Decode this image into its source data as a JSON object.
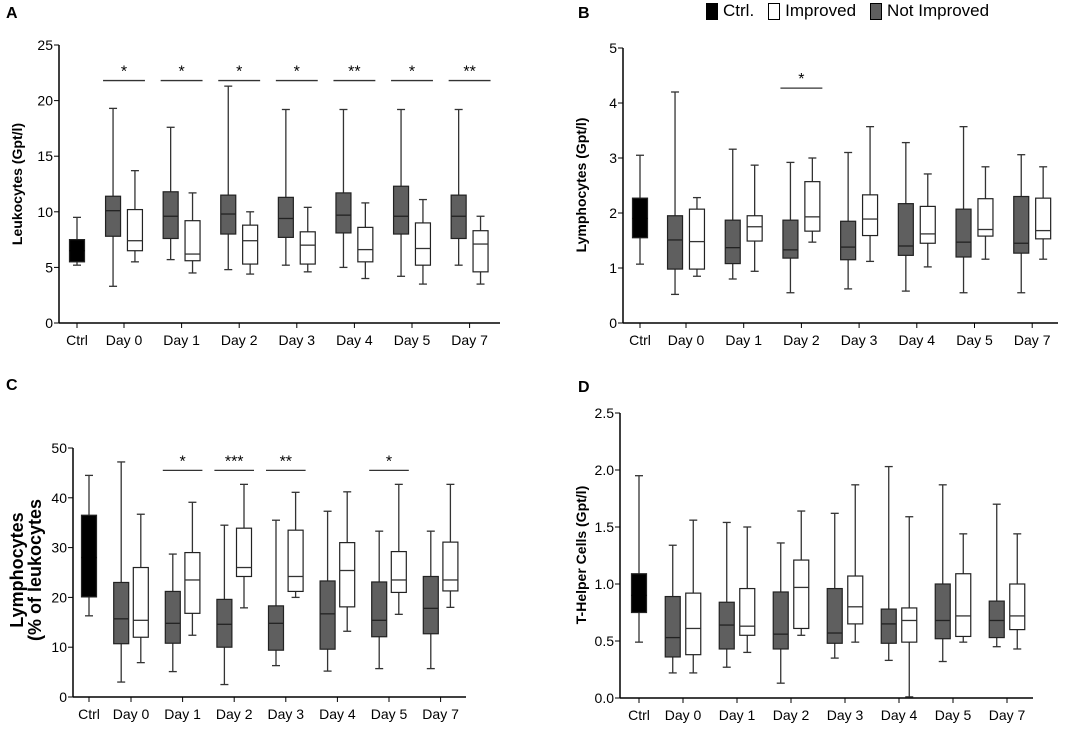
{
  "legend": [
    {
      "label": "Ctrl.",
      "color": "#000000"
    },
    {
      "label": "Improved",
      "color": "#ffffff"
    },
    {
      "label": "Not Improved",
      "color": "#5f5f5f"
    }
  ],
  "chart_data": [
    {
      "type": "box",
      "panel": "A",
      "ylabel": "Leukocytes (Gpt/l)",
      "ylim": [
        0,
        25
      ],
      "yticks": [
        "0",
        "5",
        "10",
        "15",
        "20",
        "25"
      ],
      "categories": [
        "Ctrl",
        "Day 0",
        "Day 1",
        "Day 2",
        "Day 3",
        "Day 4",
        "Day 5",
        "Day 7"
      ],
      "ctrl": [
        5.2,
        5.5,
        6.5,
        7.5,
        9.5
      ],
      "not_improved": [
        [
          3.3,
          7.8,
          10.1,
          11.4,
          19.3
        ],
        [
          5.7,
          7.6,
          9.6,
          11.8,
          17.6
        ],
        [
          4.8,
          8.0,
          9.8,
          11.5,
          21.3
        ],
        [
          5.2,
          7.7,
          9.4,
          11.3,
          19.2
        ],
        [
          5.0,
          8.1,
          9.7,
          11.7,
          19.2
        ],
        [
          4.2,
          8.0,
          9.6,
          12.3,
          19.2
        ],
        [
          5.2,
          7.6,
          9.6,
          11.5,
          19.2
        ]
      ],
      "improved": [
        [
          5.5,
          6.5,
          7.4,
          10.2,
          13.7
        ],
        [
          4.5,
          5.6,
          6.2,
          9.2,
          11.7
        ],
        [
          4.4,
          5.3,
          7.4,
          8.8,
          10.0
        ],
        [
          4.6,
          5.3,
          7.0,
          8.2,
          10.4
        ],
        [
          4.0,
          5.5,
          6.6,
          8.6,
          10.8
        ],
        [
          3.5,
          5.2,
          6.7,
          9.0,
          11.1
        ],
        [
          3.5,
          4.6,
          7.1,
          8.3,
          9.6
        ]
      ],
      "significance": [
        "*",
        "*",
        "*",
        "*",
        "**",
        "*",
        "**"
      ],
      "sig_level": 21.8
    },
    {
      "type": "box",
      "panel": "B",
      "ylabel": "Lymphocytes (Gpt/l)",
      "ylim": [
        0,
        5
      ],
      "yticks": [
        "0",
        "1",
        "2",
        "3",
        "4",
        "5"
      ],
      "categories": [
        "Ctrl",
        "Day 0",
        "Day 1",
        "Day 2",
        "Day 3",
        "Day 4",
        "Day 5",
        "Day 7"
      ],
      "ctrl": [
        1.07,
        1.55,
        1.9,
        2.27,
        3.05
      ],
      "not_improved": [
        [
          0.52,
          0.98,
          1.51,
          1.95,
          4.2
        ],
        [
          0.8,
          1.08,
          1.37,
          1.87,
          3.16
        ],
        [
          0.55,
          1.18,
          1.33,
          1.87,
          2.92
        ],
        [
          0.62,
          1.15,
          1.38,
          1.85,
          3.1
        ],
        [
          0.58,
          1.23,
          1.4,
          2.17,
          3.28
        ],
        [
          0.55,
          1.2,
          1.47,
          2.07,
          3.57
        ],
        [
          0.55,
          1.27,
          1.45,
          2.3,
          3.06
        ]
      ],
      "improved": [
        [
          0.85,
          0.98,
          1.48,
          2.07,
          2.28
        ],
        [
          0.94,
          1.49,
          1.75,
          1.95,
          2.87
        ],
        [
          1.47,
          1.67,
          1.93,
          2.57,
          3.0
        ],
        [
          1.12,
          1.59,
          1.89,
          2.33,
          3.57
        ],
        [
          1.02,
          1.45,
          1.62,
          2.12,
          2.71
        ],
        [
          1.16,
          1.58,
          1.7,
          2.26,
          2.84
        ],
        [
          1.16,
          1.53,
          1.68,
          2.27,
          2.84
        ]
      ],
      "significance": [
        "",
        "",
        "*",
        "",
        "",
        "",
        ""
      ],
      "sig_level": 4.27
    },
    {
      "type": "box",
      "panel": "C",
      "ylabel": "Lymphocytes",
      "ylabel2": "(% of leukocytes",
      "ylim": [
        0,
        50
      ],
      "yticks": [
        "0",
        "10",
        "20",
        "30",
        "40",
        "50"
      ],
      "categories": [
        "Ctrl",
        "Day 0",
        "Day 1",
        "Day 2",
        "Day 3",
        "Day 4",
        "Day 5",
        "Day 7"
      ],
      "ctrl": [
        16.3,
        20.1,
        28,
        36.5,
        44.5
      ],
      "not_improved": [
        [
          3,
          10.7,
          15.7,
          23,
          47.2
        ],
        [
          5.1,
          10.8,
          14.8,
          21.2,
          28.7
        ],
        [
          2.5,
          10,
          14.6,
          19.6,
          34.5
        ],
        [
          6.3,
          9.4,
          14.8,
          18.3,
          35.5
        ],
        [
          5.2,
          9.6,
          16.7,
          23.3,
          37.3
        ],
        [
          5.7,
          12.1,
          15.4,
          23.1,
          33.3
        ],
        [
          5.7,
          12.7,
          17.8,
          24.2,
          33.3
        ]
      ],
      "improved": [
        [
          6.9,
          12,
          15.4,
          26,
          36.7
        ],
        [
          12.4,
          16.8,
          23.5,
          29,
          39.1
        ],
        [
          17.9,
          24.2,
          26,
          33.9,
          42.7
        ],
        [
          20,
          21.2,
          24.2,
          33.5,
          41.1
        ],
        [
          13.2,
          18.1,
          25.4,
          31,
          41.2
        ],
        [
          16.6,
          21,
          23.5,
          29.2,
          42.7
        ],
        [
          18,
          21.3,
          23.5,
          31.1,
          42.7
        ]
      ],
      "significance": [
        "",
        "*",
        "***",
        "**",
        "",
        "*",
        ""
      ],
      "sig_level": 45.5
    },
    {
      "type": "box",
      "panel": "D",
      "ylabel": "T-Helper Cells (Gpt/l)",
      "ylim": [
        0,
        2.5
      ],
      "yticks": [
        "0.0",
        "0.5",
        "1.0",
        "1.5",
        "2.0",
        "2.5"
      ],
      "categories": [
        "Ctrl",
        "Day 0",
        "Day 1",
        "Day 2",
        "Day 3",
        "Day 4",
        "Day 5",
        "Day 7"
      ],
      "ctrl": [
        0.49,
        0.75,
        0.9,
        1.09,
        1.95
      ],
      "not_improved": [
        [
          0.22,
          0.36,
          0.53,
          0.89,
          1.34
        ],
        [
          0.27,
          0.43,
          0.64,
          0.84,
          1.54
        ],
        [
          0.13,
          0.43,
          0.56,
          0.93,
          1.36
        ],
        [
          0.35,
          0.48,
          0.57,
          0.96,
          1.62
        ],
        [
          0.33,
          0.48,
          0.65,
          0.78,
          2.03
        ],
        [
          0.32,
          0.52,
          0.68,
          1.0,
          1.87
        ],
        [
          0.45,
          0.53,
          0.68,
          0.85,
          1.7
        ]
      ],
      "improved": [
        [
          0.22,
          0.38,
          0.61,
          0.92,
          1.56
        ],
        [
          0.4,
          0.55,
          0.63,
          0.96,
          1.5
        ],
        [
          0.55,
          0.61,
          0.97,
          1.21,
          1.64
        ],
        [
          0.49,
          0.65,
          0.8,
          1.07,
          1.87
        ],
        [
          0.01,
          0.49,
          0.68,
          0.79,
          1.59
        ],
        [
          0.49,
          0.54,
          0.72,
          1.09,
          1.44
        ],
        [
          0.43,
          0.6,
          0.72,
          1.0,
          1.44
        ]
      ],
      "significance": [
        "",
        "",
        "",
        "",
        "",
        "",
        ""
      ],
      "sig_level": 2.3
    }
  ]
}
